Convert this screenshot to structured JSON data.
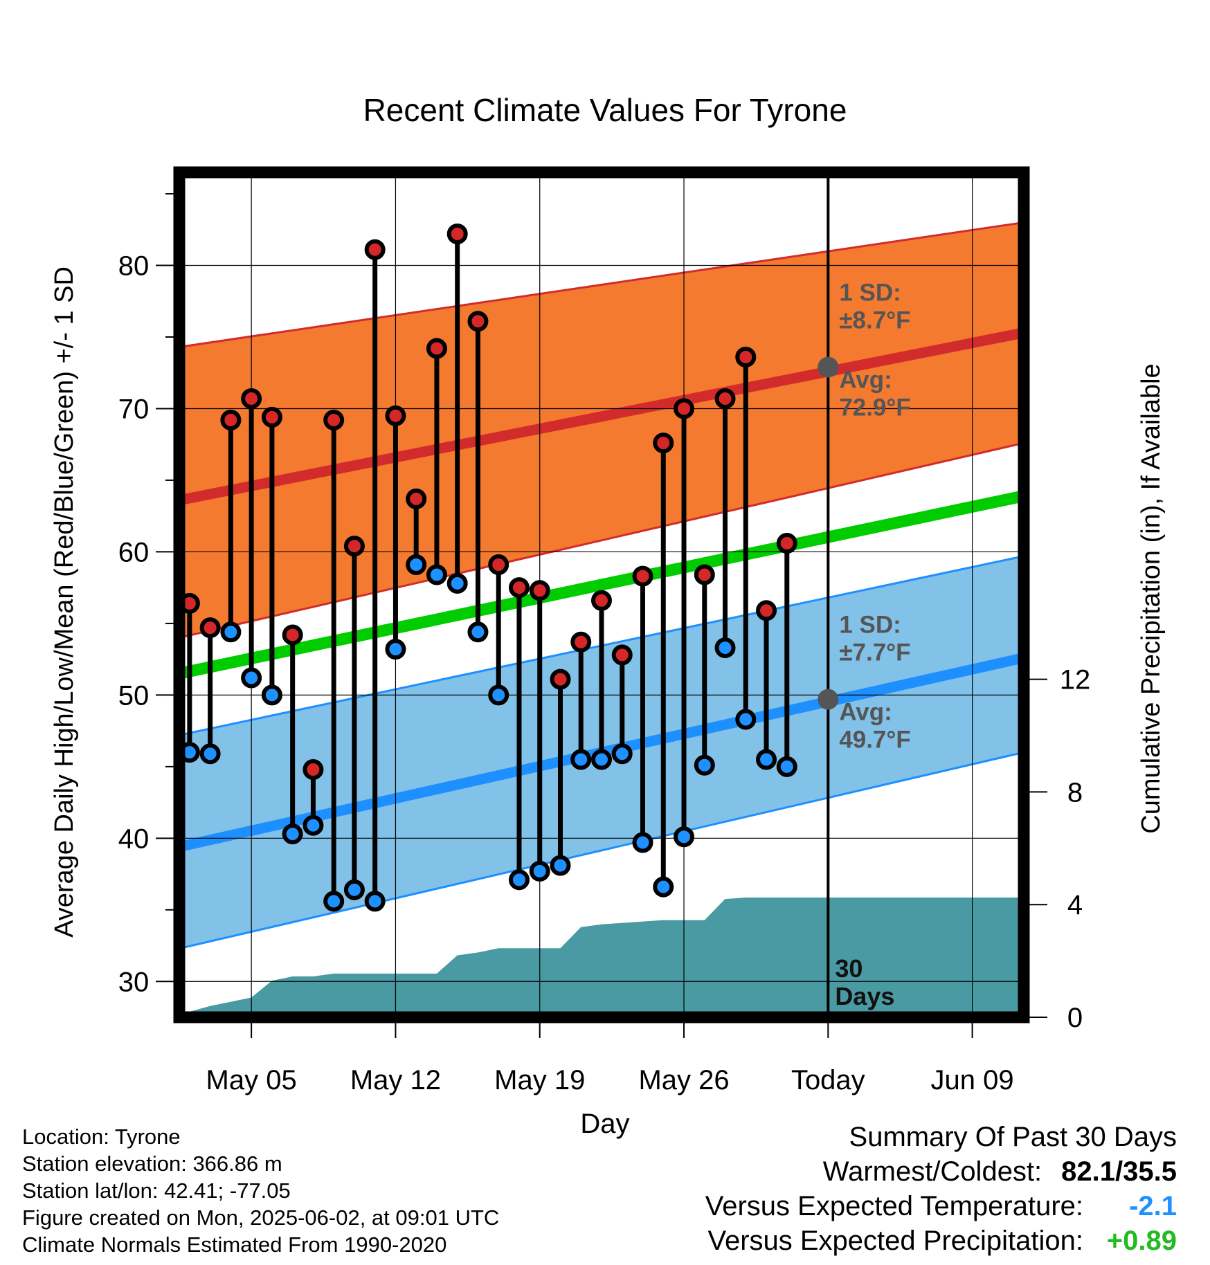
{
  "chart_data": {
    "type": "line",
    "title": "Recent Climate Values For Tyrone",
    "xlabel": "Day",
    "ylabel": "Average Daily High/Low/Mean (Red/Blue/Green) +/- 1 SD",
    "y2label": "Cumulative Precipitation (in), If Available",
    "x_ticks": [
      "May 05",
      "May 12",
      "May 19",
      "May 26",
      "Today",
      "Jun 09"
    ],
    "ylim": [
      27.5,
      86.5
    ],
    "y_ticks": [
      30,
      40,
      50,
      60,
      70,
      80
    ],
    "y2lim": [
      0,
      30
    ],
    "y2_ticks": [
      0,
      4,
      8,
      12
    ],
    "xlim": [
      "2025-05-01 12:00",
      "2025-06-11 12:00"
    ],
    "days": [
      "2025-05-02",
      "2025-05-03",
      "2025-05-04",
      "2025-05-05",
      "2025-05-06",
      "2025-05-07",
      "2025-05-08",
      "2025-05-09",
      "2025-05-10",
      "2025-05-11",
      "2025-05-12",
      "2025-05-13",
      "2025-05-14",
      "2025-05-15",
      "2025-05-16",
      "2025-05-17",
      "2025-05-18",
      "2025-05-19",
      "2025-05-20",
      "2025-05-21",
      "2025-05-22",
      "2025-05-23",
      "2025-05-24",
      "2025-05-25",
      "2025-05-26",
      "2025-05-27",
      "2025-05-28",
      "2025-05-29",
      "2025-05-30",
      "2025-05-31",
      "2025-06-01"
    ],
    "series": [
      {
        "name": "Daily High",
        "color": "#d62728",
        "values": [
          56.4,
          54.7,
          69.2,
          70.7,
          69.4,
          54.2,
          44.8,
          69.2,
          60.4,
          81.1,
          69.5,
          63.7,
          74.2,
          82.2,
          76.1,
          59.1,
          57.5,
          57.3,
          51.1,
          53.7,
          56.6,
          52.8,
          58.3,
          67.6,
          70.0,
          58.4,
          70.7,
          73.6,
          55.9,
          60.6,
          null
        ]
      },
      {
        "name": "Daily Low",
        "color": "#1e90ff",
        "values": [
          46.0,
          45.9,
          54.4,
          51.2,
          50.0,
          40.3,
          40.9,
          35.6,
          36.4,
          35.6,
          53.2,
          59.1,
          58.4,
          57.8,
          54.4,
          50.0,
          37.1,
          37.7,
          38.1,
          45.5,
          45.5,
          45.9,
          39.7,
          36.6,
          40.1,
          45.1,
          53.3,
          48.3,
          45.5,
          45.0,
          null
        ]
      }
    ],
    "normals": {
      "avg_high_start": 63.6,
      "avg_high_today": 72.9,
      "avg_high_end": 75.3,
      "avg_low_start": 39.4,
      "avg_low_today": 49.7,
      "avg_low_end": 52.6,
      "avg_mean_start": 51.5,
      "avg_mean_end": 63.9,
      "sd_high": 8.7,
      "sd_low": 7.7,
      "high_band_upper_start": 74.3,
      "high_band_upper_end": 83.0,
      "high_band_lower_start": 54.0,
      "high_band_lower_end": 67.6,
      "low_band_upper_start": 47.2,
      "low_band_upper_end": 59.7,
      "low_band_lower_start": 32.3,
      "low_band_lower_end": 46.0
    },
    "precip_x": [
      "2025-05-01 12:00",
      "2025-05-02",
      "2025-05-03",
      "2025-05-04",
      "2025-05-05",
      "2025-05-06",
      "2025-05-07",
      "2025-05-08",
      "2025-05-09",
      "2025-05-10",
      "2025-05-11",
      "2025-05-12",
      "2025-05-13",
      "2025-05-14",
      "2025-05-15",
      "2025-05-16",
      "2025-05-17",
      "2025-05-18",
      "2025-05-19",
      "2025-05-20",
      "2025-05-21",
      "2025-05-22",
      "2025-05-23",
      "2025-05-24",
      "2025-05-25",
      "2025-05-26",
      "2025-05-27",
      "2025-05-28",
      "2025-05-29",
      "2025-05-30",
      "2025-05-31",
      "2025-06-01",
      "2025-06-11 12:00"
    ],
    "precip_cum": [
      0.0,
      0.2,
      0.4,
      0.55,
      0.7,
      1.3,
      1.45,
      1.45,
      1.55,
      1.55,
      1.55,
      1.55,
      1.55,
      1.55,
      2.2,
      2.3,
      2.45,
      2.45,
      2.45,
      2.45,
      3.2,
      3.3,
      3.35,
      3.4,
      3.45,
      3.45,
      3.45,
      4.2,
      4.25,
      4.25,
      4.25,
      4.25,
      4.25
    ],
    "annotations": {
      "high_sd_label": "1 SD:",
      "high_sd_value": "±8.7°F",
      "high_avg_label": "Avg:",
      "high_avg_value": "72.9°F",
      "low_sd_label": "1 SD:",
      "low_sd_value": "±7.7°F",
      "low_avg_label": "Avg:",
      "low_avg_value": "49.7°F",
      "days_line1": "30",
      "days_line2": "Days"
    },
    "colors": {
      "high_band": "#f47a30",
      "high_line": "#d22b2b",
      "low_band": "#82c1e8",
      "low_line": "#1e8fff",
      "mean_line": "#00cc00",
      "precip": "#4a9aa3",
      "marker_high": "#d62728",
      "marker_low": "#1e90ff",
      "today_marker": "#555555"
    }
  },
  "info": {
    "location": "Location: Tyrone",
    "elevation": "Station elevation: 366.86 m",
    "latlon": "Station lat/lon: 42.41; -77.05",
    "created": "Figure created on Mon, 2025-06-02, at 09:01 UTC",
    "normals": "Climate Normals Estimated From 1990-2020"
  },
  "summary": {
    "title": "Summary Of Past 30 Days",
    "warm_cold_label": "Warmest/Coldest:",
    "warm_cold_value": "82.1/35.5",
    "temp_label": "Versus Expected Temperature:",
    "temp_value": "-2.1",
    "temp_color": "#1e90ff",
    "precip_label": "Versus Expected Precipitation:",
    "precip_value": "+0.89",
    "precip_color": "#22bb22"
  }
}
